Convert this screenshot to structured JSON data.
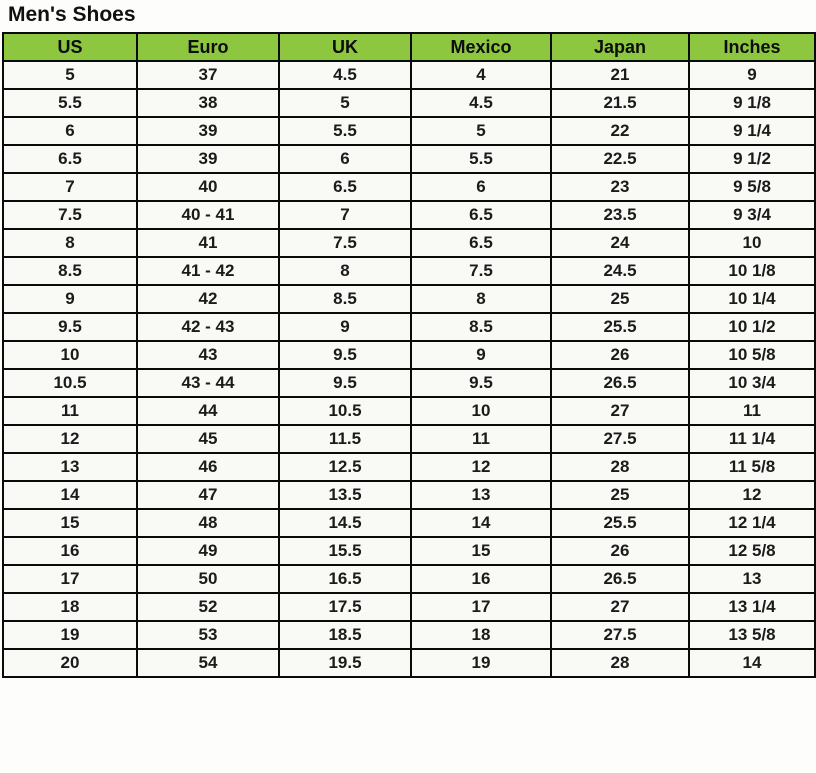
{
  "page": {
    "title": "Men's Shoes"
  },
  "colors": {
    "header_bg": "#8DC63F",
    "border": "#0a0a0a",
    "cell_bg": "#f9f9f6",
    "text": "#1b1b1b"
  },
  "chart_data": {
    "type": "table",
    "title": "Men's Shoes",
    "columns": [
      "US",
      "Euro",
      "UK",
      "Mexico",
      "Japan",
      "Inches"
    ],
    "rows": [
      [
        "5",
        "37",
        "4.5",
        "4",
        "21",
        "9"
      ],
      [
        "5.5",
        "38",
        "5",
        "4.5",
        "21.5",
        "9 1/8"
      ],
      [
        "6",
        "39",
        "5.5",
        "5",
        "22",
        "9 1/4"
      ],
      [
        "6.5",
        "39",
        "6",
        "5.5",
        "22.5",
        "9 1/2"
      ],
      [
        "7",
        "40",
        "6.5",
        "6",
        "23",
        "9 5/8"
      ],
      [
        "7.5",
        "40 - 41",
        "7",
        "6.5",
        "23.5",
        "9 3/4"
      ],
      [
        "8",
        "41",
        "7.5",
        "6.5",
        "24",
        "10"
      ],
      [
        "8.5",
        "41 - 42",
        "8",
        "7.5",
        "24.5",
        "10 1/8"
      ],
      [
        "9",
        "42",
        "8.5",
        "8",
        "25",
        "10 1/4"
      ],
      [
        "9.5",
        "42 - 43",
        "9",
        "8.5",
        "25.5",
        "10 1/2"
      ],
      [
        "10",
        "43",
        "9.5",
        "9",
        "26",
        "10 5/8"
      ],
      [
        "10.5",
        "43 - 44",
        "9.5",
        "9.5",
        "26.5",
        "10 3/4"
      ],
      [
        "11",
        "44",
        "10.5",
        "10",
        "27",
        "11"
      ],
      [
        "12",
        "45",
        "11.5",
        "11",
        "27.5",
        "11 1/4"
      ],
      [
        "13",
        "46",
        "12.5",
        "12",
        "28",
        "11 5/8"
      ],
      [
        "14",
        "47",
        "13.5",
        "13",
        "25",
        "12"
      ],
      [
        "15",
        "48",
        "14.5",
        "14",
        "25.5",
        "12 1/4"
      ],
      [
        "16",
        "49",
        "15.5",
        "15",
        "26",
        "12 5/8"
      ],
      [
        "17",
        "50",
        "16.5",
        "16",
        "26.5",
        "13"
      ],
      [
        "18",
        "52",
        "17.5",
        "17",
        "27",
        "13 1/4"
      ],
      [
        "19",
        "53",
        "18.5",
        "18",
        "27.5",
        "13 5/8"
      ],
      [
        "20",
        "54",
        "19.5",
        "19",
        "28",
        "14"
      ]
    ]
  }
}
